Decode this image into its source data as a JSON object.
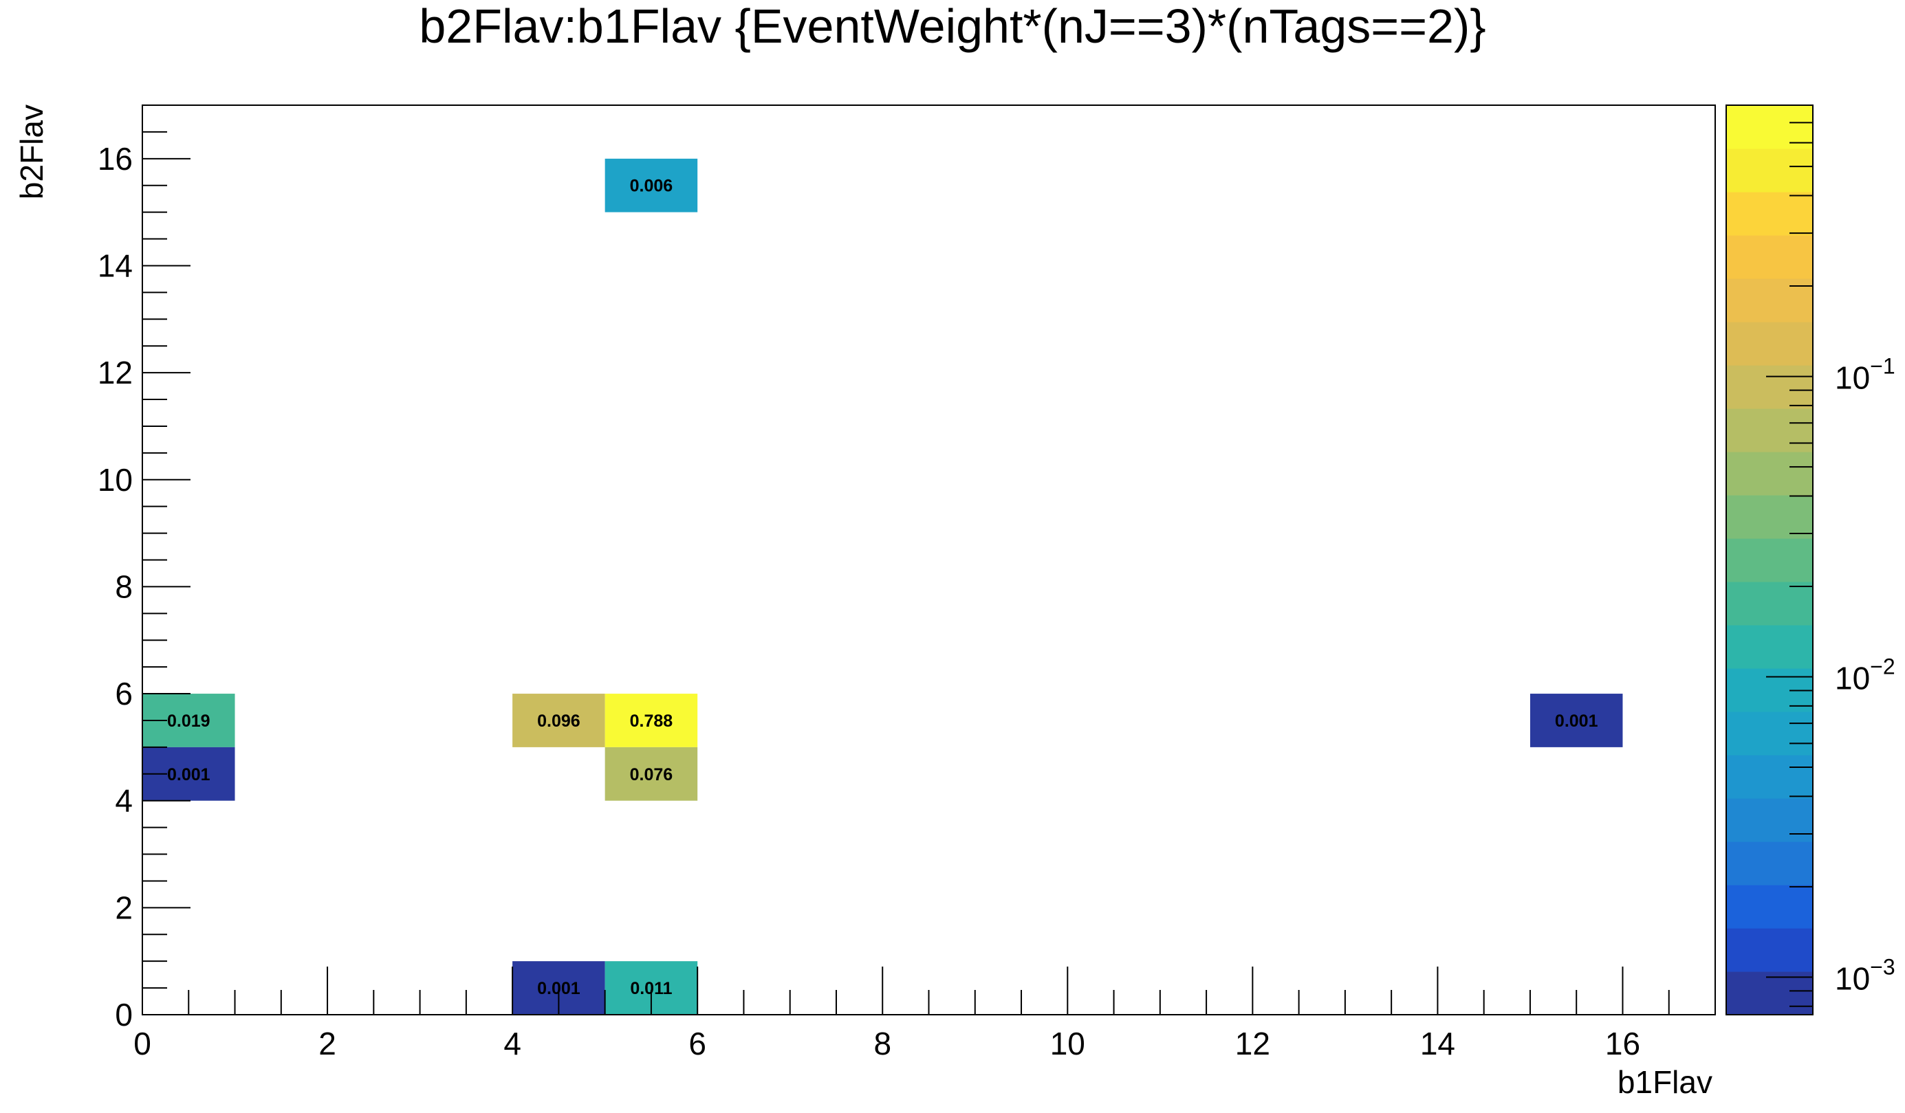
{
  "chart_data": {
    "type": "heatmap",
    "title": "b2Flav:b1Flav {EventWeight*(nJ==3)*(nTags==2)}",
    "xlabel": "b1Flav",
    "ylabel": "b2Flav",
    "xlim": [
      0,
      17
    ],
    "ylim": [
      0,
      17
    ],
    "x_ticks": [
      0,
      2,
      4,
      6,
      8,
      10,
      12,
      14,
      16
    ],
    "y_ticks": [
      0,
      2,
      4,
      6,
      8,
      10,
      12,
      14,
      16
    ],
    "bin_width": 1,
    "cells": [
      {
        "x": 5,
        "y": 15,
        "value": 0.006,
        "label": "0.006"
      },
      {
        "x": 0,
        "y": 5,
        "value": 0.019,
        "label": "0.019"
      },
      {
        "x": 4,
        "y": 5,
        "value": 0.096,
        "label": "0.096"
      },
      {
        "x": 5,
        "y": 5,
        "value": 0.788,
        "label": "0.788"
      },
      {
        "x": 15,
        "y": 5,
        "value": 0.001,
        "label": "0.001"
      },
      {
        "x": 0,
        "y": 4,
        "value": 0.001,
        "label": "0.001"
      },
      {
        "x": 5,
        "y": 4,
        "value": 0.076,
        "label": "0.076"
      },
      {
        "x": 4,
        "y": 0,
        "value": 0.001,
        "label": "0.001"
      },
      {
        "x": 5,
        "y": 0,
        "value": 0.011,
        "label": "0.011"
      }
    ],
    "colorbar": {
      "scale": "log",
      "range": [
        0.00075,
        0.8
      ],
      "tick_values": [
        0.001,
        0.01,
        0.1
      ],
      "tick_labels": [
        {
          "base": "10",
          "exp": "−3"
        },
        {
          "base": "10",
          "exp": "−2"
        },
        {
          "base": "10",
          "exp": "−1"
        }
      ],
      "palette": [
        "#2a3a9e",
        "#1f4bc9",
        "#1b62db",
        "#1f78d6",
        "#1f88d2",
        "#1e96cf",
        "#1ea3c8",
        "#20acbe",
        "#2db5aa",
        "#44b895",
        "#5fbb85",
        "#7dbd78",
        "#9bbe6d",
        "#b5be65",
        "#cbbd5e",
        "#ddbc55",
        "#ecbf4e",
        "#f7c543",
        "#fcd43a",
        "#f7ec33",
        "#f9fa34"
      ]
    }
  }
}
